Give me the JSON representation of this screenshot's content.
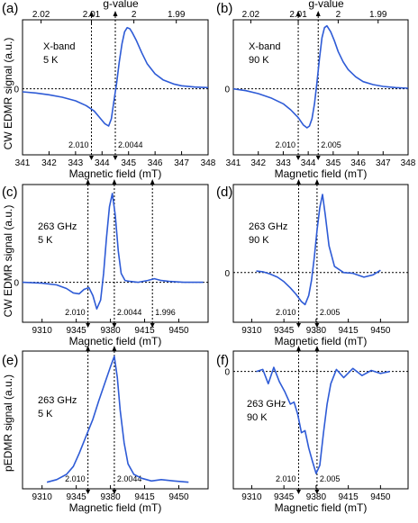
{
  "chart_data": [
    {
      "id": "a",
      "panel_label": "(a)",
      "type": "line",
      "annotation": [
        "X-band",
        "5 K"
      ],
      "xlabel": "Magnetic field (mT)",
      "xlim": [
        341,
        348
      ],
      "xticks": [
        341,
        342,
        343,
        344,
        345,
        346,
        347,
        348
      ],
      "top_axis_label": "g-value",
      "top_ticks": [
        {
          "label": "2.02",
          "field": 341.7
        },
        {
          "label": "2.01",
          "field": 343.6
        },
        {
          "label": "2",
          "field": 345.2
        },
        {
          "label": "1.99",
          "field": 346.8
        }
      ],
      "zero_label": "0",
      "markers": [
        {
          "x": 343.6,
          "label": "2.010"
        },
        {
          "x": 344.5,
          "label": "2.0044"
        }
      ],
      "series": [
        {
          "color": "#2e5bd6",
          "x": [
            341.0,
            341.5,
            342.0,
            342.5,
            343.0,
            343.4,
            343.7,
            343.95,
            344.1,
            344.25,
            344.35,
            344.45,
            344.55,
            344.65,
            344.75,
            344.85,
            344.95,
            345.05,
            345.15,
            345.3,
            345.5,
            345.7,
            346.0,
            346.3,
            346.7,
            347.0,
            347.5,
            348.0
          ],
          "y": [
            -0.05,
            -0.07,
            -0.1,
            -0.14,
            -0.2,
            -0.28,
            -0.37,
            -0.5,
            -0.58,
            -0.62,
            -0.5,
            -0.2,
            0.1,
            0.45,
            0.75,
            0.95,
            1.02,
            1.0,
            0.93,
            0.8,
            0.6,
            0.42,
            0.25,
            0.15,
            0.08,
            0.05,
            0.03,
            0.02
          ]
        }
      ]
    },
    {
      "id": "b",
      "panel_label": "(b)",
      "type": "line",
      "annotation": [
        "X-band",
        "90 K"
      ],
      "xlabel": "Magnetic field (mT)",
      "xlim": [
        341,
        348
      ],
      "xticks": [
        341,
        342,
        343,
        344,
        345,
        346,
        347,
        348
      ],
      "top_axis_label": "g-value",
      "top_ticks": [
        {
          "label": "2.02",
          "field": 341.7
        },
        {
          "label": "2.01",
          "field": 343.6
        },
        {
          "label": "2",
          "field": 345.2
        },
        {
          "label": "1.99",
          "field": 346.8
        }
      ],
      "zero_label": "0",
      "markers": [
        {
          "x": 343.6,
          "label": "2.010"
        },
        {
          "x": 344.4,
          "label": "2.005"
        }
      ],
      "series": [
        {
          "color": "#2e5bd6",
          "x": [
            341.0,
            341.5,
            342.0,
            342.5,
            343.0,
            343.3,
            343.6,
            343.8,
            343.95,
            344.05,
            344.15,
            344.25,
            344.35,
            344.45,
            344.55,
            344.65,
            344.75,
            344.9,
            345.05,
            345.2,
            345.4,
            345.6,
            345.9,
            346.2,
            346.6,
            347.0,
            347.5,
            348.0
          ],
          "y": [
            0.0,
            -0.03,
            -0.08,
            -0.15,
            -0.25,
            -0.35,
            -0.48,
            -0.6,
            -0.65,
            -0.62,
            -0.5,
            -0.25,
            0.1,
            0.5,
            0.85,
            1.02,
            1.05,
            0.95,
            0.8,
            0.62,
            0.45,
            0.32,
            0.2,
            0.12,
            0.07,
            0.04,
            0.02,
            0.01
          ]
        }
      ]
    },
    {
      "id": "c",
      "panel_label": "(c)",
      "type": "line",
      "annotation": [
        "263 GHz",
        "5 K"
      ],
      "xlabel": "Magnetic field (mT)",
      "xlim": [
        9290,
        9480
      ],
      "xticks": [
        9310,
        9345,
        9380,
        9415,
        9450
      ],
      "zero_label": "0",
      "markers": [
        {
          "x": 9357,
          "label": "2.010"
        },
        {
          "x": 9384,
          "label": "2.0044"
        },
        {
          "x": 9423,
          "label": "1.996"
        }
      ],
      "series": [
        {
          "color": "#2e5bd6",
          "x": [
            9290,
            9310,
            9325,
            9335,
            9342,
            9348,
            9353,
            9358,
            9362,
            9366,
            9370,
            9373,
            9376,
            9379,
            9382,
            9385,
            9388,
            9391,
            9395,
            9400,
            9408,
            9418,
            9425,
            9432,
            9440,
            9455,
            9475
          ],
          "y": [
            0.0,
            -0.01,
            -0.03,
            -0.07,
            -0.12,
            -0.13,
            -0.08,
            -0.06,
            -0.15,
            -0.3,
            -0.2,
            0.1,
            0.5,
            0.85,
            1.0,
            0.75,
            0.35,
            0.1,
            0.02,
            0.01,
            0.0,
            0.02,
            0.04,
            0.02,
            0.01,
            0.0,
            0.0
          ]
        }
      ]
    },
    {
      "id": "d",
      "panel_label": "(d)",
      "type": "line",
      "annotation": [
        "263 GHz",
        "90 K"
      ],
      "xlabel": "Magnetic field (mT)",
      "xlim": [
        9290,
        9480
      ],
      "xticks": [
        9310,
        9345,
        9380,
        9415,
        9450
      ],
      "zero_label": "0",
      "markers": [
        {
          "x": 9361,
          "label": "2.010"
        },
        {
          "x": 9381,
          "label": "2.005"
        }
      ],
      "series": [
        {
          "color": "#2e5bd6",
          "x": [
            9315,
            9322,
            9330,
            9338,
            9345,
            9352,
            9358,
            9364,
            9368,
            9372,
            9375,
            9378,
            9381,
            9384,
            9387,
            9390,
            9394,
            9400,
            9410,
            9420,
            9432,
            9442,
            9450
          ],
          "y": [
            0.02,
            0.01,
            -0.02,
            -0.06,
            -0.12,
            -0.2,
            -0.28,
            -0.38,
            -0.42,
            -0.3,
            -0.1,
            0.2,
            0.55,
            0.85,
            1.02,
            0.75,
            0.35,
            0.08,
            0.0,
            -0.01,
            -0.06,
            -0.03,
            0.03
          ]
        }
      ]
    },
    {
      "id": "e",
      "panel_label": "(e)",
      "type": "line",
      "annotation": [
        "263 GHz",
        "5 K"
      ],
      "xlabel": "Magnetic field (mT)",
      "xlim": [
        9290,
        9480
      ],
      "xticks": [
        9310,
        9345,
        9380,
        9415,
        9450
      ],
      "markers": [
        {
          "x": 9357,
          "label": "2.010"
        },
        {
          "x": 9384,
          "label": "2.0044"
        }
      ],
      "series": [
        {
          "color": "#2e5bd6",
          "x": [
            9315,
            9325,
            9335,
            9342,
            9348,
            9355,
            9362,
            9368,
            9374,
            9380,
            9384,
            9387,
            9390,
            9394,
            9398,
            9404,
            9412,
            9422,
            9432,
            9445,
            9460
          ],
          "y": [
            0.0,
            0.02,
            0.06,
            0.12,
            0.22,
            0.35,
            0.48,
            0.62,
            0.75,
            0.88,
            0.96,
            0.8,
            0.55,
            0.3,
            0.14,
            0.06,
            0.03,
            0.01,
            0.02,
            0.01,
            0.0
          ]
        }
      ]
    },
    {
      "id": "f",
      "panel_label": "(f)",
      "type": "line",
      "annotation": [
        "263 GHz",
        "90 K"
      ],
      "xlabel": "Magnetic field (mT)",
      "xlim": [
        9290,
        9480
      ],
      "xticks": [
        9310,
        9345,
        9380,
        9415,
        9450
      ],
      "zero_label": "0",
      "markers": [
        {
          "x": 9361,
          "label": "2.010"
        },
        {
          "x": 9381,
          "label": "2.005"
        }
      ],
      "series": [
        {
          "color": "#2e5bd6",
          "x": [
            9315,
            9322,
            9328,
            9334,
            9340,
            9346,
            9352,
            9356,
            9360,
            9364,
            9368,
            9372,
            9376,
            9380,
            9384,
            9388,
            9392,
            9396,
            9402,
            9410,
            9420,
            9430,
            9440,
            9450,
            9460
          ],
          "y": [
            0.0,
            0.02,
            -0.12,
            0.04,
            -0.1,
            -0.2,
            -0.32,
            -0.3,
            -0.42,
            -0.6,
            -0.58,
            -0.75,
            -0.88,
            -1.0,
            -0.92,
            -0.6,
            -0.32,
            -0.12,
            0.02,
            -0.06,
            0.03,
            -0.04,
            0.01,
            -0.02,
            0.0
          ]
        }
      ]
    }
  ],
  "ylabels": [
    {
      "text": "CW EDMR signal (a.u.)"
    },
    {
      "text": "CW EDMR signal (a.u.)"
    },
    {
      "text": "pEDMR signal (a.u.)"
    }
  ]
}
